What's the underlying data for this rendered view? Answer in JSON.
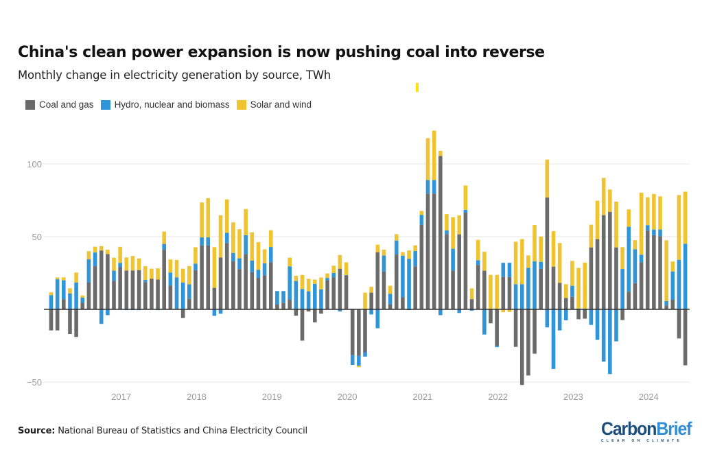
{
  "title": "China's clean power expansion is now pushing coal into reverse",
  "subtitle": "Monthly change in electricity generation by source, TWh",
  "source_label": "Source:",
  "source_text": " National Bureau of Statistics and China Electricity Council",
  "logo": {
    "part1": "Carbon",
    "part2": "Brief",
    "tagline": "CLEAR ON CLIMATE",
    "color1": "#1d4f7a",
    "color2": "#2f8fd8"
  },
  "colors": {
    "coal": "#6b6b6b",
    "hydro": "#2f95d8",
    "solar": "#f0c330",
    "grid": "#e6e6e6",
    "zero": "#333333"
  },
  "chart_data": {
    "type": "bar",
    "stacked": true,
    "title": "China's clean power expansion is now pushing coal into reverse",
    "subtitle": "Monthly change in electricity generation by source, TWh",
    "xlabel": "",
    "ylabel": "TWh",
    "ylim": [
      -55,
      125
    ],
    "yticks": [
      -50,
      50,
      100
    ],
    "ytick_labels": [
      "−50",
      "50",
      "100"
    ],
    "xticks": [
      "2017",
      "2018",
      "2019",
      "2020",
      "2021",
      "2022",
      "2023",
      "2024"
    ],
    "xtick_month_index": [
      11,
      23,
      35,
      47,
      59,
      71,
      83,
      95
    ],
    "grid": true,
    "legend_position": "top-left",
    "period": "Feb 2016 - Jul 2024, monthly",
    "series": [
      {
        "name": "Coal and gas",
        "key": "coal",
        "values": [
          -14.5,
          -14.5,
          7,
          -17,
          -19,
          4.5,
          18.4,
          29.7,
          40.5,
          38,
          19.6,
          29,
          26.7,
          26.7,
          27,
          18.7,
          21,
          20.6,
          41,
          16.3,
          0.5,
          -6,
          7.2,
          27,
          44,
          44,
          14.8,
          35.7,
          45.7,
          33,
          27.7,
          38,
          25.5,
          21.7,
          23.3,
          32.4,
          3.3,
          4.4,
          6.6,
          -4.4,
          -21.5,
          -1.5,
          -9,
          -3,
          20,
          22,
          28,
          23.3,
          -31.4,
          -32,
          -29.5,
          11.5,
          39.3,
          26,
          3.5,
          37.7,
          8.3,
          -0.5,
          29.6,
          58.2,
          79.6,
          79.6,
          105.5,
          51.6,
          26.7,
          51.6,
          66.5,
          7,
          30.5,
          26.6,
          -9.6,
          -25,
          22.3,
          22.3,
          -25.8,
          -52,
          -45.5,
          -30.5,
          28,
          77,
          29.4,
          18.2,
          7.9,
          8.6,
          -6.8,
          -6.4,
          42.6,
          48.3,
          64.8,
          67.1,
          42.6,
          -7.4,
          12.1,
          18,
          32.4,
          54.1,
          51,
          50.3,
          2.7,
          6.6,
          -20,
          -38.5
        ]
      },
      {
        "name": "Hydro, nuclear and biomass",
        "key": "hydro",
        "values": [
          9.8,
          20.7,
          13,
          11,
          18.5,
          3.5,
          16,
          9.4,
          -10,
          -4,
          7,
          3,
          -0.5,
          -0.5,
          -0.5,
          1.6,
          0,
          -0.5,
          4,
          9,
          21.5,
          18.5,
          10,
          4.4,
          5.5,
          5.5,
          -4.5,
          -3,
          6.9,
          5.8,
          7.4,
          13,
          8,
          5.5,
          8.3,
          10.5,
          9.3,
          8.2,
          23,
          19.5,
          14,
          12.4,
          17.5,
          13.7,
          1.6,
          3,
          -1.5,
          0.3,
          -6.8,
          -6.8,
          -3,
          -3.5,
          -13,
          11,
          7.2,
          9.6,
          28.6,
          34.7,
          10.5,
          6.8,
          9.3,
          9.3,
          -4,
          2.7,
          15,
          -2.5,
          2,
          -1,
          3.3,
          -17.3,
          0,
          -1,
          9.7,
          9.7,
          17.3,
          17.3,
          28.5,
          33,
          4.7,
          -12.4,
          -41,
          -14.5,
          -7.5,
          7.6,
          0.5,
          0.5,
          -10.7,
          -21,
          -36,
          -44.5,
          -22,
          27.8,
          44.7,
          23.3,
          5.2,
          3.8,
          3.9,
          4.6,
          3,
          19.5,
          34.1,
          45.1
        ]
      },
      {
        "name": "Solar and wind",
        "key": "solar",
        "values": [
          1.9,
          1.3,
          2,
          3.5,
          6.8,
          1.5,
          5.6,
          4,
          3,
          3,
          9,
          11,
          9,
          10,
          8,
          9.4,
          7,
          7.6,
          8.5,
          9,
          12,
          9.5,
          12.6,
          11.3,
          24,
          27,
          28,
          29,
          23,
          21,
          20,
          18,
          19.5,
          19,
          9.7,
          11.5,
          -0.5,
          -0.5,
          6,
          3.6,
          9.6,
          8.6,
          3,
          8.2,
          3.1,
          5,
          9.4,
          8.7,
          0,
          -1,
          11.5,
          4,
          5.2,
          4,
          5.5,
          4.4,
          2.4,
          5.8,
          3.9,
          2.7,
          28.8,
          34,
          3.5,
          11.2,
          21.6,
          13,
          16.7,
          7.4,
          14,
          13,
          23.7,
          23.7,
          -2,
          -1.8,
          29.2,
          31,
          8.6,
          25,
          17.3,
          26,
          24.4,
          27.4,
          9.4,
          17.1,
          28,
          31.6,
          15.6,
          26.4,
          25.6,
          15.3,
          31.5,
          15,
          11.9,
          6.3,
          42.6,
          19.2,
          24.4,
          22.8,
          41.8,
          6.8,
          44.5,
          35.8
        ]
      }
    ]
  }
}
